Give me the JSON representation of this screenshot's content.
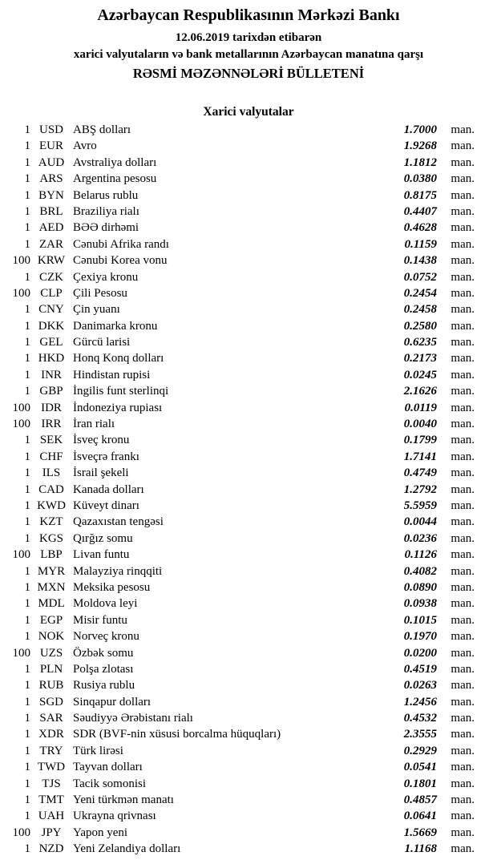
{
  "header": {
    "bank_name": "Azərbaycan Respublikasının Mərkəzi Bankı",
    "date_line": "12.06.2019 tarixdən etibarən",
    "subtitle_line": "xarici valyutaların və bank metallarının Azərbaycan manatına qarşı",
    "bulletin_title": "RƏSMİ MƏZƏNNƏLƏRİ BÜLLETENİ"
  },
  "section": {
    "title": "Xarici valyutalar"
  },
  "unit_label": "man.",
  "colors": {
    "text": "#000000",
    "background": "#ffffff"
  },
  "rates": [
    {
      "qty": "1",
      "code": "USD",
      "name": "ABŞ dolları",
      "rate": "1.7000"
    },
    {
      "qty": "1",
      "code": "EUR",
      "name": "Avro",
      "rate": "1.9268"
    },
    {
      "qty": "1",
      "code": "AUD",
      "name": "Avstraliya dolları",
      "rate": "1.1812"
    },
    {
      "qty": "1",
      "code": "ARS",
      "name": "Argentina pesosu",
      "rate": "0.0380"
    },
    {
      "qty": "1",
      "code": "BYN",
      "name": "Belarus rublu",
      "rate": "0.8175"
    },
    {
      "qty": "1",
      "code": "BRL",
      "name": "Braziliya rialı",
      "rate": "0.4407"
    },
    {
      "qty": "1",
      "code": "AED",
      "name": "BƏƏ dirhəmi",
      "rate": "0.4628"
    },
    {
      "qty": "1",
      "code": "ZAR",
      "name": "Cənubi Afrika randı",
      "rate": "0.1159"
    },
    {
      "qty": "100",
      "code": "KRW",
      "name": "Cənubi Korea vonu",
      "rate": "0.1438"
    },
    {
      "qty": "1",
      "code": "CZK",
      "name": "Çexiya kronu",
      "rate": "0.0752"
    },
    {
      "qty": "100",
      "code": "CLP",
      "name": "Çili Pesosu",
      "rate": "0.2454"
    },
    {
      "qty": "1",
      "code": "CNY",
      "name": "Çin yuanı",
      "rate": "0.2458"
    },
    {
      "qty": "1",
      "code": "DKK",
      "name": "Danimarka kronu",
      "rate": "0.2580"
    },
    {
      "qty": "1",
      "code": "GEL",
      "name": "Gürcü larisi",
      "rate": "0.6235"
    },
    {
      "qty": "1",
      "code": "HKD",
      "name": "Honq Konq dolları",
      "rate": "0.2173"
    },
    {
      "qty": "1",
      "code": "INR",
      "name": "Hindistan rupisi",
      "rate": "0.0245"
    },
    {
      "qty": "1",
      "code": "GBP",
      "name": "İngilis funt sterlinqi",
      "rate": "2.1626"
    },
    {
      "qty": "100",
      "code": "IDR",
      "name": "İndoneziya rupiası",
      "rate": "0.0119"
    },
    {
      "qty": "100",
      "code": "IRR",
      "name": "İran rialı",
      "rate": "0.0040"
    },
    {
      "qty": "1",
      "code": "SEK",
      "name": "İsveç kronu",
      "rate": "0.1799"
    },
    {
      "qty": "1",
      "code": "CHF",
      "name": "İsveçrə frankı",
      "rate": "1.7141"
    },
    {
      "qty": "1",
      "code": "ILS",
      "name": "İsrail şekeli",
      "rate": "0.4749"
    },
    {
      "qty": "1",
      "code": "CAD",
      "name": "Kanada dolları",
      "rate": "1.2792"
    },
    {
      "qty": "1",
      "code": "KWD",
      "name": "Küveyt dinarı",
      "rate": "5.5959"
    },
    {
      "qty": "1",
      "code": "KZT",
      "name": "Qazaxıstan tengəsi",
      "rate": "0.0044"
    },
    {
      "qty": "1",
      "code": "KGS",
      "name": "Qırğız somu",
      "rate": "0.0236"
    },
    {
      "qty": "100",
      "code": "LBP",
      "name": "Livan funtu",
      "rate": "0.1126"
    },
    {
      "qty": "1",
      "code": "MYR",
      "name": "Malayziya rinqqiti",
      "rate": "0.4082"
    },
    {
      "qty": "1",
      "code": "MXN",
      "name": "Meksika pesosu",
      "rate": "0.0890"
    },
    {
      "qty": "1",
      "code": "MDL",
      "name": "Moldova leyi",
      "rate": "0.0938"
    },
    {
      "qty": "1",
      "code": "EGP",
      "name": "Misir funtu",
      "rate": "0.1015"
    },
    {
      "qty": "1",
      "code": "NOK",
      "name": "Norveç kronu",
      "rate": "0.1970"
    },
    {
      "qty": "100",
      "code": "UZS",
      "name": "Özbək somu",
      "rate": "0.0200"
    },
    {
      "qty": "1",
      "code": "PLN",
      "name": "Polşa zlotası",
      "rate": "0.4519"
    },
    {
      "qty": "1",
      "code": "RUB",
      "name": "Rusiya rublu",
      "rate": "0.0263"
    },
    {
      "qty": "1",
      "code": "SGD",
      "name": "Sinqapur dolları",
      "rate": "1.2456"
    },
    {
      "qty": "1",
      "code": "SAR",
      "name": "Səudiyyə Ərəbistanı rialı",
      "rate": "0.4532"
    },
    {
      "qty": "1",
      "code": "XDR",
      "name": "SDR (BVF-nin xüsusi borcalma hüquqları)",
      "rate": "2.3555"
    },
    {
      "qty": "1",
      "code": "TRY",
      "name": "Türk lirəsi",
      "rate": "0.2929"
    },
    {
      "qty": "1",
      "code": "TWD",
      "name": "Tayvan dolları",
      "rate": "0.0541"
    },
    {
      "qty": "1",
      "code": "TJS",
      "name": "Tacik somonisi",
      "rate": "0.1801"
    },
    {
      "qty": "1",
      "code": "TMT",
      "name": "Yeni türkmən manatı",
      "rate": "0.4857"
    },
    {
      "qty": "1",
      "code": "UAH",
      "name": "Ukrayna qrivnası",
      "rate": "0.0641"
    },
    {
      "qty": "100",
      "code": "JPY",
      "name": "Yapon yeni",
      "rate": "1.5669"
    },
    {
      "qty": "1",
      "code": "NZD",
      "name": "Yeni Zelandiya dolları",
      "rate": "1.1168"
    }
  ]
}
